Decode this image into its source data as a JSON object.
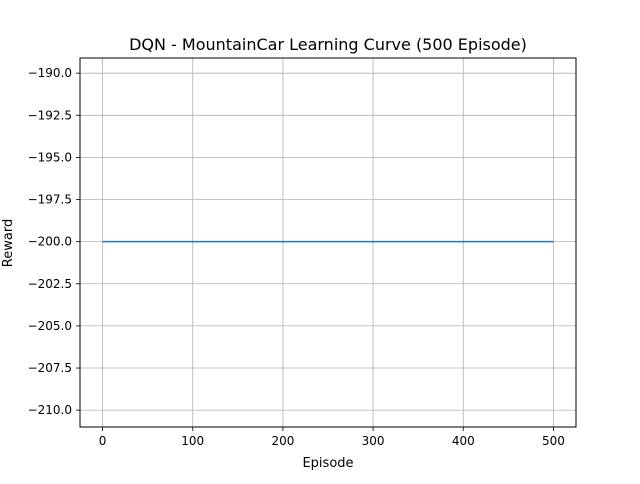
{
  "chart_data": {
    "type": "line",
    "title": "DQN - MountainCar Learning Curve (500 Episode)",
    "xlabel": "Episode",
    "ylabel": "Reward",
    "xlim": [
      -25,
      525
    ],
    "ylim": [
      -211,
      -189.1
    ],
    "xticks": [
      0,
      100,
      200,
      300,
      400,
      500
    ],
    "xtick_labels": [
      "0",
      "100",
      "200",
      "300",
      "400",
      "500"
    ],
    "yticks": [
      -190.0,
      -192.5,
      -195.0,
      -197.5,
      -200.0,
      -202.5,
      -205.0,
      -207.5,
      -210.0
    ],
    "ytick_labels": [
      "−190.0",
      "−192.5",
      "−195.0",
      "−197.5",
      "−200.0",
      "−202.5",
      "−205.0",
      "−207.5",
      "−210.0"
    ],
    "grid": true,
    "series": [
      {
        "color": "#1f77b4",
        "x": [
          0,
          500
        ],
        "y": [
          -200,
          -200
        ]
      }
    ]
  }
}
